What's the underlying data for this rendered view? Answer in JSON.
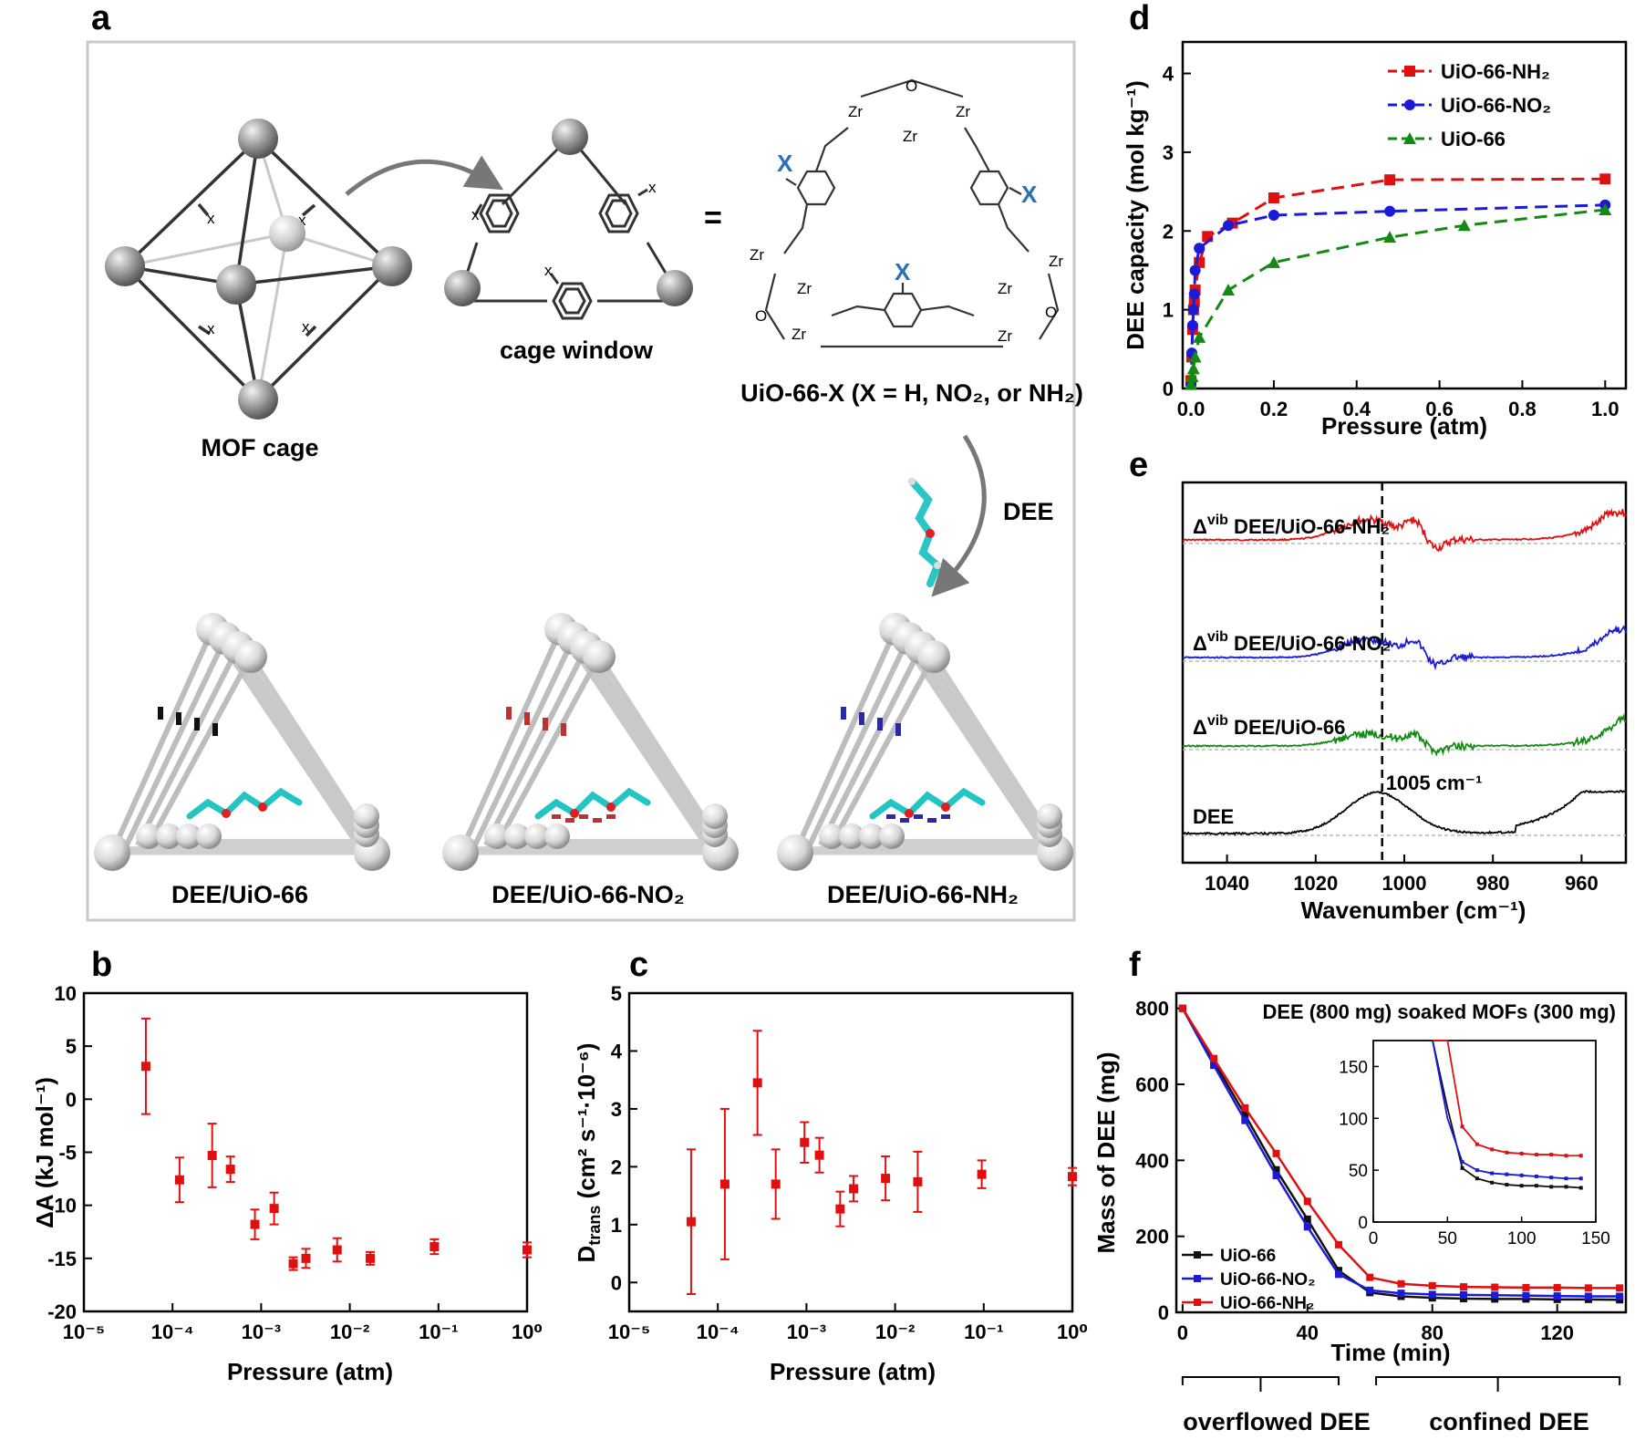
{
  "panel_labels": {
    "a": "a",
    "b": "b",
    "c": "c",
    "d": "d",
    "e": "e",
    "f": "f"
  },
  "panel_a": {
    "mof_cage": "MOF cage",
    "cage_window": "cage window",
    "equals": "=",
    "uio_formula": "UiO-66-X (X = H, NO₂, or NH₂)",
    "dee_arrow": "DEE",
    "x_small": "x",
    "x_big": "X",
    "zr": "Zr",
    "o": "O",
    "captions": [
      "DEE/UiO-66",
      "DEE/UiO-66-NO₂",
      "DEE/UiO-66-NH₂"
    ]
  },
  "chart_data": [
    {
      "id": "b",
      "type": "scatter",
      "ylabel": "ΔA (kJ mol⁻¹)",
      "xlabel": "Pressure (atm)",
      "xscale": "log",
      "xlim": [
        1e-05,
        1
      ],
      "ylim": [
        -20,
        10
      ],
      "yticks": [
        10,
        5,
        0,
        -5,
        -10,
        -15,
        -20
      ],
      "xticks": [
        "10⁻⁵",
        "10⁻⁴",
        "10⁻³",
        "10⁻²",
        "10⁻¹",
        "10⁰"
      ],
      "color": "#e01010",
      "points": [
        {
          "x": 5e-05,
          "y": 3.1,
          "err": 4.5
        },
        {
          "x": 0.00012,
          "y": -7.6,
          "err": 2.1
        },
        {
          "x": 0.00028,
          "y": -5.3,
          "err": 3.0
        },
        {
          "x": 0.00045,
          "y": -6.6,
          "err": 1.2
        },
        {
          "x": 0.00085,
          "y": -11.8,
          "err": 1.4
        },
        {
          "x": 0.0014,
          "y": -10.3,
          "err": 1.5
        },
        {
          "x": 0.0023,
          "y": -15.5,
          "err": 0.6
        },
        {
          "x": 0.0032,
          "y": -15.0,
          "err": 0.9
        },
        {
          "x": 0.0072,
          "y": -14.2,
          "err": 1.1
        },
        {
          "x": 0.017,
          "y": -15.0,
          "err": 0.6
        },
        {
          "x": 0.09,
          "y": -13.9,
          "err": 0.7
        },
        {
          "x": 1.0,
          "y": -14.2,
          "err": 0.7
        }
      ]
    },
    {
      "id": "c",
      "type": "scatter",
      "ylabel": "D",
      "ylabel_sub": "trans",
      "ylabel_rest": " (cm² s⁻¹·10⁻⁶)",
      "xlabel": "Pressure (atm)",
      "xscale": "log",
      "xlim": [
        1e-05,
        1
      ],
      "ylim": [
        -0.5,
        5
      ],
      "yticks": [
        5,
        4,
        3,
        2,
        1,
        0
      ],
      "xticks": [
        "10⁻⁵",
        "10⁻⁴",
        "10⁻³",
        "10⁻²",
        "10⁻¹",
        "10⁰"
      ],
      "color": "#e01010",
      "points": [
        {
          "x": 5e-05,
          "y": 1.05,
          "err": 1.25
        },
        {
          "x": 0.00012,
          "y": 1.7,
          "err": 1.3
        },
        {
          "x": 0.00028,
          "y": 3.45,
          "err": 0.9
        },
        {
          "x": 0.00045,
          "y": 1.7,
          "err": 0.6
        },
        {
          "x": 0.00095,
          "y": 2.42,
          "err": 0.35
        },
        {
          "x": 0.0014,
          "y": 2.2,
          "err": 0.3
        },
        {
          "x": 0.0024,
          "y": 1.27,
          "err": 0.3
        },
        {
          "x": 0.0034,
          "y": 1.62,
          "err": 0.22
        },
        {
          "x": 0.0078,
          "y": 1.8,
          "err": 0.38
        },
        {
          "x": 0.018,
          "y": 1.74,
          "err": 0.52
        },
        {
          "x": 0.095,
          "y": 1.87,
          "err": 0.24
        },
        {
          "x": 1.0,
          "y": 1.83,
          "err": 0.15
        }
      ]
    },
    {
      "id": "d",
      "type": "line",
      "ylabel": "DEE capacity (mol kg⁻¹)",
      "xlabel": "Pressure (atm)",
      "xlim": [
        -0.02,
        1.05
      ],
      "ylim": [
        0,
        4.4
      ],
      "xticks": [
        "0.0",
        "0.2",
        "0.4",
        "0.6",
        "0.8",
        "1.0"
      ],
      "xtick_vals": [
        0,
        0.2,
        0.4,
        0.6,
        0.8,
        1.0
      ],
      "yticks": [
        0,
        1,
        2,
        3,
        4
      ],
      "series": [
        {
          "name": "UiO-66-NH₂",
          "color": "#e01010",
          "marker": "square",
          "x": [
            0,
            0.002,
            0.004,
            0.006,
            0.008,
            0.01,
            0.02,
            0.04,
            0.1,
            0.2,
            0.48,
            1.0
          ],
          "y": [
            0.1,
            0.4,
            0.75,
            1.0,
            1.1,
            1.25,
            1.6,
            1.93,
            2.1,
            2.42,
            2.65,
            2.66
          ]
        },
        {
          "name": "UiO-66-NO₂",
          "color": "#1a1ad8",
          "marker": "circle",
          "x": [
            0,
            0.002,
            0.004,
            0.006,
            0.008,
            0.01,
            0.02,
            0.09,
            0.2,
            0.48,
            1.0
          ],
          "y": [
            0.05,
            0.45,
            0.8,
            1.0,
            1.2,
            1.5,
            1.78,
            2.07,
            2.2,
            2.25,
            2.33
          ]
        },
        {
          "name": "UiO-66",
          "color": "#138a13",
          "marker": "triangle",
          "x": [
            0,
            0.003,
            0.006,
            0.01,
            0.02,
            0.09,
            0.2,
            0.48,
            0.66,
            1.0
          ],
          "y": [
            0.05,
            0.15,
            0.25,
            0.4,
            0.65,
            1.25,
            1.6,
            1.92,
            2.07,
            2.27
          ]
        }
      ]
    },
    {
      "id": "e",
      "type": "line",
      "xlabel": "Wavenumber (cm⁻¹)",
      "xlim": [
        1050,
        950
      ],
      "reversed_x": true,
      "xticks": [
        "1040",
        "1020",
        "1000",
        "980",
        "960"
      ],
      "xtick_vals": [
        1040,
        1020,
        1000,
        980,
        960
      ],
      "annotation": "1005 cm⁻¹",
      "marker_line_x": 1005,
      "series": [
        {
          "name": "Δvib DEE/UiO-66-NH₂",
          "label_main": "DEE/UiO-66-NH₂",
          "color": "#e01010"
        },
        {
          "name": "Δvib DEE/UiO-66-NO₂",
          "label_main": "DEE/UiO-66-NO₂",
          "color": "#1a1ad8"
        },
        {
          "name": "Δvib DEE/UiO-66",
          "label_main": "DEE/UiO-66",
          "color": "#138a13"
        },
        {
          "name": "DEE",
          "label_main": "DEE",
          "color": "#000000"
        }
      ],
      "delta": "Δ",
      "vib": "vib"
    },
    {
      "id": "f",
      "type": "line",
      "ylabel": "Mass of DEE (mg)",
      "xlabel": "Time (min)",
      "title": "DEE (800 mg) soaked MOFs (300 mg)",
      "xlim": [
        -2,
        142
      ],
      "ylim": [
        0,
        840
      ],
      "xticks": [
        0,
        40,
        80,
        120
      ],
      "yticks": [
        0,
        200,
        400,
        600,
        800
      ],
      "regions": [
        "overflowed DEE",
        "confined DEE"
      ],
      "series": [
        {
          "name": "UiO-66",
          "color": "#111111",
          "x": [
            0,
            10,
            20,
            30,
            40,
            50,
            60,
            70,
            80,
            90,
            100,
            110,
            120,
            130,
            140
          ],
          "y": [
            800,
            660,
            520,
            375,
            245,
            110,
            52,
            42,
            38,
            36,
            35,
            35,
            34,
            34,
            33
          ]
        },
        {
          "name": "UiO-66-NO₂",
          "color": "#1a1ad8",
          "x": [
            0,
            10,
            20,
            30,
            40,
            50,
            60,
            70,
            80,
            90,
            100,
            110,
            120,
            130,
            140
          ],
          "y": [
            800,
            650,
            505,
            360,
            225,
            100,
            58,
            50,
            47,
            46,
            45,
            44,
            43,
            42,
            42
          ]
        },
        {
          "name": "UiO-66-NH₂",
          "color": "#e01010",
          "x": [
            0,
            10,
            20,
            30,
            40,
            50,
            60,
            70,
            80,
            90,
            100,
            110,
            120,
            130,
            140
          ],
          "y": [
            800,
            668,
            538,
            418,
            292,
            178,
            92,
            75,
            70,
            67,
            66,
            65,
            65,
            64,
            64
          ]
        }
      ],
      "inset": {
        "xlim": [
          0,
          150
        ],
        "ylim": [
          0,
          175
        ],
        "xticks": [
          0,
          50,
          100,
          150
        ],
        "yticks": [
          0,
          50,
          100,
          150
        ]
      }
    }
  ]
}
